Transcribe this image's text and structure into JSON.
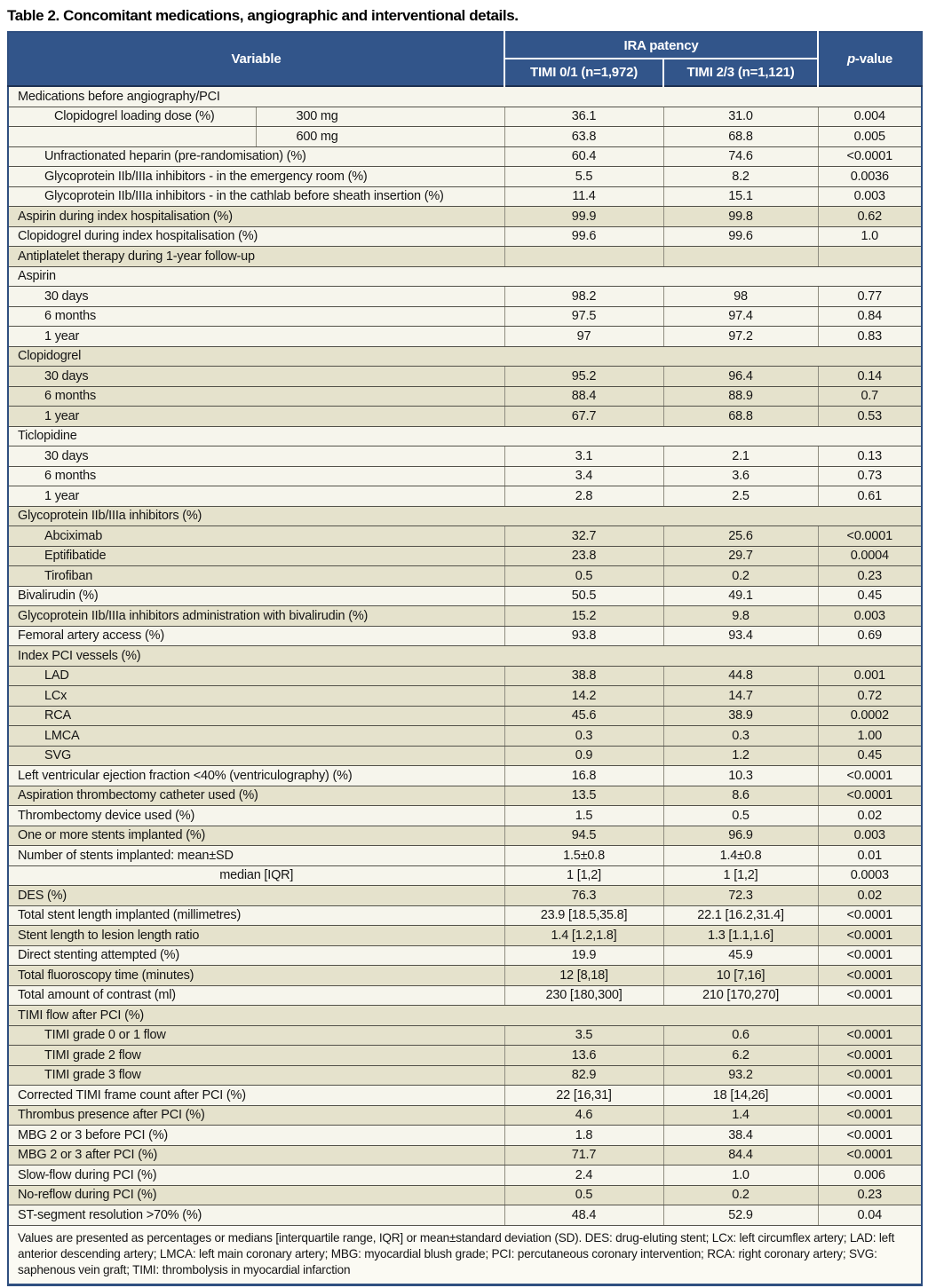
{
  "title": "Table 2. Concomitant medications, angiographic and interventional details.",
  "table": {
    "header": {
      "variable": "Variable",
      "group": "IRA patency",
      "col1": "TIMI 0/1 (n=1,972)",
      "col2": "TIMI 2/3 (n=1,121)",
      "p_italic": "p",
      "p_rest": "-value"
    },
    "rows": [
      {
        "kind": "section",
        "bg": "w",
        "label": "Medications before angiography/PCI"
      },
      {
        "kind": "split",
        "bg": "w",
        "label": "Clopidogrel loading dose (%)",
        "sub": "300 mg",
        "v1": "36.1",
        "v2": "31.0",
        "p": "0.004"
      },
      {
        "kind": "split",
        "bg": "w",
        "label": "",
        "sub": "600 mg",
        "v1": "63.8",
        "v2": "68.8",
        "p": "0.005"
      },
      {
        "kind": "data",
        "bg": "w",
        "indent": 1,
        "label": "Unfractionated heparin (pre-randomisation) (%)",
        "v1": "60.4",
        "v2": "74.6",
        "p": "<0.0001"
      },
      {
        "kind": "data",
        "bg": "w",
        "indent": 1,
        "label": "Glycoprotein IIb/IIIa inhibitors - in the emergency room (%)",
        "v1": "5.5",
        "v2": "8.2",
        "p": "0.0036"
      },
      {
        "kind": "data",
        "bg": "w",
        "indent": 1,
        "label": "Glycoprotein IIb/IIIa inhibitors - in the cathlab before sheath insertion (%)",
        "v1": "11.4",
        "v2": "15.1",
        "p": "0.003"
      },
      {
        "kind": "data",
        "bg": "b",
        "indent": 0,
        "label": "Aspirin during index hospitalisation (%)",
        "v1": "99.9",
        "v2": "99.8",
        "p": "0.62"
      },
      {
        "kind": "data",
        "bg": "w",
        "indent": 0,
        "label": "Clopidogrel during index hospitalisation (%)",
        "v1": "99.6",
        "v2": "99.6",
        "p": "1.0"
      },
      {
        "kind": "data",
        "bg": "b",
        "indent": 0,
        "label": "Antiplatelet therapy during 1-year follow-up",
        "v1": "",
        "v2": "",
        "p": ""
      },
      {
        "kind": "section",
        "bg": "w",
        "label": "Aspirin"
      },
      {
        "kind": "data",
        "bg": "w",
        "indent": 1,
        "label": "30 days",
        "v1": "98.2",
        "v2": "98",
        "p": "0.77"
      },
      {
        "kind": "data",
        "bg": "w",
        "indent": 1,
        "label": "6 months",
        "v1": "97.5",
        "v2": "97.4",
        "p": "0.84"
      },
      {
        "kind": "data",
        "bg": "w",
        "indent": 1,
        "label": "1 year",
        "v1": "97",
        "v2": "97.2",
        "p": "0.83"
      },
      {
        "kind": "section",
        "bg": "b",
        "label": "Clopidogrel"
      },
      {
        "kind": "data",
        "bg": "b",
        "indent": 1,
        "label": "30 days",
        "v1": "95.2",
        "v2": "96.4",
        "p": "0.14"
      },
      {
        "kind": "data",
        "bg": "b",
        "indent": 1,
        "label": "6 months",
        "v1": "88.4",
        "v2": "88.9",
        "p": "0.7"
      },
      {
        "kind": "data",
        "bg": "b",
        "indent": 1,
        "label": "1 year",
        "v1": "67.7",
        "v2": "68.8",
        "p": "0.53"
      },
      {
        "kind": "section",
        "bg": "w",
        "label": "Ticlopidine"
      },
      {
        "kind": "data",
        "bg": "w",
        "indent": 1,
        "label": "30 days",
        "v1": "3.1",
        "v2": "2.1",
        "p": "0.13"
      },
      {
        "kind": "data",
        "bg": "w",
        "indent": 1,
        "label": "6 months",
        "v1": "3.4",
        "v2": "3.6",
        "p": "0.73"
      },
      {
        "kind": "data",
        "bg": "w",
        "indent": 1,
        "label": "1 year",
        "v1": "2.8",
        "v2": "2.5",
        "p": "0.61"
      },
      {
        "kind": "section",
        "bg": "b",
        "label": "Glycoprotein IIb/IIIa inhibitors (%)"
      },
      {
        "kind": "data",
        "bg": "b",
        "indent": 1,
        "label": "Abciximab",
        "v1": "32.7",
        "v2": "25.6",
        "p": "<0.0001"
      },
      {
        "kind": "data",
        "bg": "b",
        "indent": 1,
        "label": "Eptifibatide",
        "v1": "23.8",
        "v2": "29.7",
        "p": "0.0004"
      },
      {
        "kind": "data",
        "bg": "b",
        "indent": 1,
        "label": "Tirofiban",
        "v1": "0.5",
        "v2": "0.2",
        "p": "0.23"
      },
      {
        "kind": "data",
        "bg": "w",
        "indent": 0,
        "label": "Bivalirudin (%)",
        "v1": "50.5",
        "v2": "49.1",
        "p": "0.45"
      },
      {
        "kind": "data",
        "bg": "b",
        "indent": 0,
        "label": "Glycoprotein IIb/IIIa inhibitors administration with bivalirudin (%)",
        "v1": "15.2",
        "v2": "9.8",
        "p": "0.003"
      },
      {
        "kind": "data",
        "bg": "w",
        "indent": 0,
        "label": "Femoral artery access (%)",
        "v1": "93.8",
        "v2": "93.4",
        "p": "0.69"
      },
      {
        "kind": "section",
        "bg": "b",
        "label": "Index PCI vessels (%)"
      },
      {
        "kind": "data",
        "bg": "b",
        "indent": 1,
        "label": "LAD",
        "v1": "38.8",
        "v2": "44.8",
        "p": "0.001"
      },
      {
        "kind": "data",
        "bg": "b",
        "indent": 1,
        "label": "LCx",
        "v1": "14.2",
        "v2": "14.7",
        "p": "0.72"
      },
      {
        "kind": "data",
        "bg": "b",
        "indent": 1,
        "label": "RCA",
        "v1": "45.6",
        "v2": "38.9",
        "p": "0.0002"
      },
      {
        "kind": "data",
        "bg": "b",
        "indent": 1,
        "label": "LMCA",
        "v1": "0.3",
        "v2": "0.3",
        "p": "1.00"
      },
      {
        "kind": "data",
        "bg": "b",
        "indent": 1,
        "label": "SVG",
        "v1": "0.9",
        "v2": "1.2",
        "p": "0.45"
      },
      {
        "kind": "data",
        "bg": "w",
        "indent": 0,
        "label": "Left ventricular ejection fraction <40% (ventriculography) (%)",
        "v1": "16.8",
        "v2": "10.3",
        "p": "<0.0001"
      },
      {
        "kind": "data",
        "bg": "b",
        "indent": 0,
        "label": "Aspiration thrombectomy catheter used (%)",
        "v1": "13.5",
        "v2": "8.6",
        "p": "<0.0001"
      },
      {
        "kind": "data",
        "bg": "w",
        "indent": 0,
        "label": "Thrombectomy device used (%)",
        "v1": "1.5",
        "v2": "0.5",
        "p": "0.02"
      },
      {
        "kind": "data",
        "bg": "b",
        "indent": 0,
        "label": "One or more stents implanted (%)",
        "v1": "94.5",
        "v2": "96.9",
        "p": "0.003"
      },
      {
        "kind": "data",
        "bg": "w",
        "indent": 0,
        "label": "Number of stents implanted: mean±SD",
        "v1": "1.5±0.8",
        "v2": "1.4±0.8",
        "p": "0.01"
      },
      {
        "kind": "data",
        "bg": "w",
        "indent": 0,
        "align": "center",
        "label": "median [IQR]",
        "v1": "1 [1,2]",
        "v2": "1 [1,2]",
        "p": "0.0003"
      },
      {
        "kind": "data",
        "bg": "b",
        "indent": 0,
        "label": "DES (%)",
        "v1": "76.3",
        "v2": "72.3",
        "p": "0.02"
      },
      {
        "kind": "data",
        "bg": "w",
        "indent": 0,
        "label": "Total stent length implanted (millimetres)",
        "v1": "23.9 [18.5,35.8]",
        "v2": "22.1 [16.2,31.4]",
        "p": "<0.0001"
      },
      {
        "kind": "data",
        "bg": "b",
        "indent": 0,
        "label": "Stent length to lesion length ratio",
        "v1": "1.4 [1.2,1.8]",
        "v2": "1.3 [1.1,1.6]",
        "p": "<0.0001"
      },
      {
        "kind": "data",
        "bg": "w",
        "indent": 0,
        "label": "Direct stenting attempted (%)",
        "v1": "19.9",
        "v2": "45.9",
        "p": "<0.0001"
      },
      {
        "kind": "data",
        "bg": "b",
        "indent": 0,
        "label": "Total fluoroscopy time (minutes)",
        "v1": "12 [8,18]",
        "v2": "10 [7,16]",
        "p": "<0.0001"
      },
      {
        "kind": "data",
        "bg": "w",
        "indent": 0,
        "label": "Total amount of contrast (ml)",
        "v1": "230 [180,300]",
        "v2": "210 [170,270]",
        "p": "<0.0001"
      },
      {
        "kind": "section",
        "bg": "b",
        "label": "TIMI flow after PCI (%)"
      },
      {
        "kind": "data",
        "bg": "b",
        "indent": 1,
        "label": "TIMI grade 0 or 1 flow",
        "v1": "3.5",
        "v2": "0.6",
        "p": "<0.0001"
      },
      {
        "kind": "data",
        "bg": "b",
        "indent": 1,
        "label": "TIMI grade 2 flow",
        "v1": "13.6",
        "v2": "6.2",
        "p": "<0.0001"
      },
      {
        "kind": "data",
        "bg": "b",
        "indent": 1,
        "label": "TIMI grade 3 flow",
        "v1": "82.9",
        "v2": "93.2",
        "p": "<0.0001"
      },
      {
        "kind": "data",
        "bg": "w",
        "indent": 0,
        "label": "Corrected TIMI frame count after PCI (%)",
        "v1": "22 [16,31]",
        "v2": "18 [14,26]",
        "p": "<0.0001"
      },
      {
        "kind": "data",
        "bg": "b",
        "indent": 0,
        "label": "Thrombus presence after PCI (%)",
        "v1": "4.6",
        "v2": "1.4",
        "p": "<0.0001"
      },
      {
        "kind": "data",
        "bg": "w",
        "indent": 0,
        "label": "MBG 2 or 3 before PCI (%)",
        "v1": "1.8",
        "v2": "38.4",
        "p": "<0.0001"
      },
      {
        "kind": "data",
        "bg": "b",
        "indent": 0,
        "label": "MBG 2 or 3 after PCI (%)",
        "v1": "71.7",
        "v2": "84.4",
        "p": "<0.0001"
      },
      {
        "kind": "data",
        "bg": "w",
        "indent": 0,
        "label": "Slow-flow during PCI (%)",
        "v1": "2.4",
        "v2": "1.0",
        "p": "0.006"
      },
      {
        "kind": "data",
        "bg": "b",
        "indent": 0,
        "label": "No-reflow during PCI (%)",
        "v1": "0.5",
        "v2": "0.2",
        "p": "0.23"
      },
      {
        "kind": "data",
        "bg": "w",
        "indent": 0,
        "label": "ST-segment resolution >70% (%)",
        "v1": "48.4",
        "v2": "52.9",
        "p": "0.04"
      }
    ],
    "footnote": "Values are presented as percentages or medians [interquartile range, IQR] or mean±standard deviation (SD). DES: drug-eluting stent; LCx: left circumflex artery; LAD: left anterior descending artery; LMCA: left main coronary artery; MBG: myocardial blush grade; PCI: percutaneous coronary intervention; RCA: right coronary artery; SVG: saphenous vein graft; TIMI: thrombolysis in myocardial infarction"
  }
}
